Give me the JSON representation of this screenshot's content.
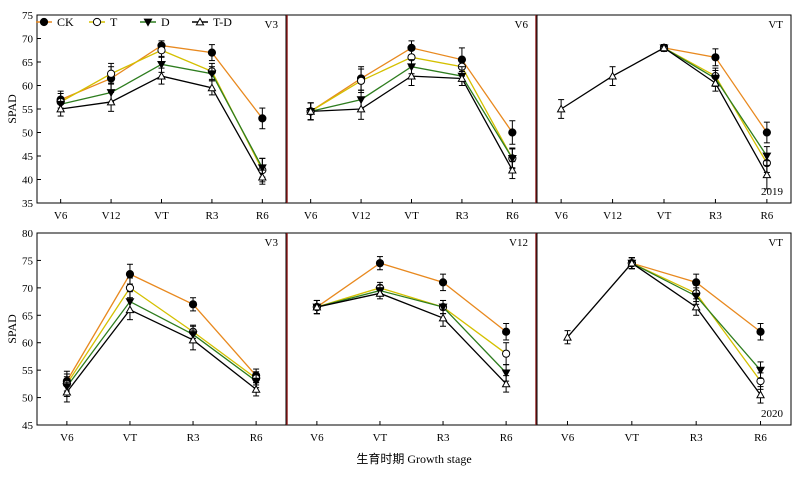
{
  "legend": [
    {
      "name": "CK",
      "marker": "circle-filled",
      "color": "#e8891f"
    },
    {
      "name": "T",
      "marker": "circle-open",
      "color": "#d4c000"
    },
    {
      "name": "D",
      "marker": "triangle-down-filled",
      "color": "#2e7d1f"
    },
    {
      "name": "T-D",
      "marker": "triangle-up-open",
      "color": "#000000"
    }
  ],
  "ylabel": "SPAD",
  "xlabel": "生育时期 Growth stage",
  "year_labels": [
    "2019",
    "2020"
  ],
  "chart_data": [
    {
      "type": "line",
      "row": 0,
      "col": 0,
      "stage_label": "V3",
      "ylim": [
        35,
        75
      ],
      "yticks": [
        35,
        40,
        45,
        50,
        55,
        60,
        65,
        70,
        75
      ],
      "categories": [
        "V6",
        "V12",
        "VT",
        "R3",
        "R6"
      ],
      "series": [
        {
          "name": "CK",
          "values": [
            57.0,
            61.5,
            68.5,
            67.0,
            53.0
          ],
          "errors": [
            1.8,
            2.5,
            1.0,
            1.7,
            2.2
          ]
        },
        {
          "name": "T",
          "values": [
            56.5,
            62.5,
            67.5,
            63.0,
            42.0
          ],
          "errors": [
            1.8,
            2.2,
            1.5,
            1.7,
            2.5
          ]
        },
        {
          "name": "D",
          "values": [
            56.0,
            58.5,
            64.5,
            62.5,
            42.5
          ],
          "errors": [
            1.5,
            2.0,
            1.7,
            1.5,
            2.0
          ]
        },
        {
          "name": "T-D",
          "values": [
            55.0,
            56.5,
            62.0,
            59.5,
            40.5
          ],
          "errors": [
            1.5,
            2.0,
            1.7,
            1.5,
            1.5
          ]
        }
      ]
    },
    {
      "type": "line",
      "row": 0,
      "col": 1,
      "stage_label": "V6",
      "ylim": [
        35,
        75
      ],
      "categories": [
        "V6",
        "V12",
        "VT",
        "R3",
        "R6"
      ],
      "series": [
        {
          "name": "CK",
          "values": [
            54.5,
            61.5,
            68.0,
            65.5,
            50.0
          ],
          "errors": [
            1.8,
            2.5,
            1.5,
            2.5,
            2.5
          ]
        },
        {
          "name": "T",
          "values": [
            54.5,
            61.0,
            66.0,
            64.0,
            44.5
          ],
          "errors": [
            1.8,
            2.5,
            1.5,
            2.0,
            2.2
          ]
        },
        {
          "name": "D",
          "values": [
            54.5,
            57.0,
            64.0,
            62.0,
            44.5
          ],
          "errors": [
            1.8,
            2.0,
            1.5,
            2.0,
            2.0
          ]
        },
        {
          "name": "T-D",
          "values": [
            54.5,
            55.0,
            62.0,
            61.5,
            42.0
          ],
          "errors": [
            1.8,
            2.2,
            2.0,
            1.5,
            1.8
          ]
        }
      ]
    },
    {
      "type": "line",
      "row": 0,
      "col": 2,
      "stage_label": "VT",
      "year_label": "2019",
      "ylim": [
        35,
        75
      ],
      "categories": [
        "V6",
        "V12",
        "VT",
        "R3",
        "R6"
      ],
      "series": [
        {
          "name": "CK",
          "values": [
            null,
            null,
            68.0,
            66.0,
            50.0
          ],
          "errors": [
            null,
            null,
            0.7,
            1.8,
            2.2
          ]
        },
        {
          "name": "T",
          "values": [
            null,
            null,
            68.0,
            62.0,
            43.5
          ],
          "errors": [
            null,
            null,
            0.7,
            1.7,
            2.0
          ]
        },
        {
          "name": "D",
          "values": [
            null,
            null,
            68.0,
            61.5,
            45.0
          ],
          "errors": [
            null,
            null,
            0.7,
            1.7,
            2.0
          ]
        },
        {
          "name": "T-D",
          "values": [
            55.0,
            62.0,
            68.0,
            60.5,
            41.0
          ],
          "errors": [
            2.0,
            2.0,
            0.7,
            1.7,
            3.0
          ]
        }
      ]
    },
    {
      "type": "line",
      "row": 1,
      "col": 0,
      "stage_label": "V3",
      "ylim": [
        45,
        80
      ],
      "yticks": [
        45,
        50,
        55,
        60,
        65,
        70,
        75,
        80
      ],
      "categories": [
        "V6",
        "VT",
        "R3",
        "R6"
      ],
      "series": [
        {
          "name": "CK",
          "values": [
            53.0,
            72.5,
            67.0,
            54.0
          ],
          "errors": [
            1.8,
            1.8,
            1.2,
            1.2
          ]
        },
        {
          "name": "T",
          "values": [
            52.5,
            70.0,
            62.0,
            53.5
          ],
          "errors": [
            1.8,
            1.8,
            1.2,
            1.2
          ]
        },
        {
          "name": "D",
          "values": [
            52.0,
            67.5,
            61.5,
            53.0
          ],
          "errors": [
            1.8,
            1.8,
            1.5,
            1.2
          ]
        },
        {
          "name": "T-D",
          "values": [
            51.0,
            66.0,
            60.5,
            51.5
          ],
          "errors": [
            1.8,
            1.8,
            1.8,
            1.2
          ]
        }
      ]
    },
    {
      "type": "line",
      "row": 1,
      "col": 1,
      "stage_label": "V12",
      "ylim": [
        45,
        80
      ],
      "categories": [
        "V6",
        "VT",
        "R3",
        "R6"
      ],
      "series": [
        {
          "name": "CK",
          "values": [
            66.5,
            74.5,
            71.0,
            62.0
          ],
          "errors": [
            1.2,
            1.2,
            1.5,
            1.5
          ]
        },
        {
          "name": "T",
          "values": [
            66.5,
            70.0,
            66.5,
            58.0
          ],
          "errors": [
            1.2,
            1.0,
            1.2,
            2.0
          ]
        },
        {
          "name": "D",
          "values": [
            66.5,
            69.5,
            66.5,
            54.5
          ],
          "errors": [
            1.2,
            1.0,
            1.2,
            1.5
          ]
        },
        {
          "name": "T-D",
          "values": [
            66.5,
            69.0,
            64.5,
            52.5
          ],
          "errors": [
            1.2,
            1.0,
            1.5,
            1.5
          ]
        }
      ]
    },
    {
      "type": "line",
      "row": 1,
      "col": 2,
      "stage_label": "VT",
      "year_label": "2020",
      "ylim": [
        45,
        80
      ],
      "categories": [
        "V6",
        "VT",
        "R3",
        "R6"
      ],
      "series": [
        {
          "name": "CK",
          "values": [
            null,
            74.5,
            71.0,
            62.0
          ],
          "errors": [
            null,
            1.0,
            1.5,
            1.5
          ]
        },
        {
          "name": "T",
          "values": [
            null,
            74.5,
            69.0,
            53.0
          ],
          "errors": [
            null,
            1.0,
            1.5,
            1.5
          ]
        },
        {
          "name": "D",
          "values": [
            null,
            74.5,
            68.5,
            55.0
          ],
          "errors": [
            null,
            1.0,
            1.5,
            1.5
          ]
        },
        {
          "name": "T-D",
          "values": [
            61.0,
            74.5,
            66.5,
            50.5
          ],
          "errors": [
            1.2,
            1.0,
            1.5,
            1.5
          ]
        }
      ]
    }
  ]
}
